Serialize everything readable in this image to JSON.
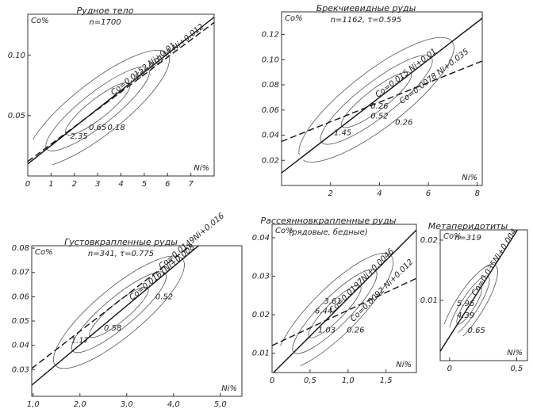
{
  "chart_data": [
    {
      "type": "contour",
      "title": "Рудное тело",
      "subtitle": "n=1700",
      "y_label": "Co%",
      "x_label": "Ni%",
      "xlim": [
        0,
        8
      ],
      "ylim": [
        0,
        0.134
      ],
      "xticks": [
        0,
        1,
        2,
        3,
        4,
        5,
        6,
        7
      ],
      "yticks": [
        0.05,
        {
          "value": 0.1,
          "label": "0.10"
        }
      ],
      "lines": [
        {
          "label": "Co=0.0152 Ni+0.01",
          "slope": 0.0152,
          "intercept": 0.01,
          "dashed": false
        },
        {
          "label": "Co=0.0144 Ni+0.012",
          "slope": 0.0144,
          "intercept": 0.012,
          "dashed": true
        }
      ],
      "annotations": [
        {
          "text": "2.35",
          "x": 2.2,
          "y": 0.033
        },
        {
          "text": "0.65",
          "x": 3.0,
          "y": 0.04
        },
        {
          "text": "0.18",
          "x": 3.8,
          "y": 0.04
        }
      ]
    },
    {
      "type": "contour",
      "title": "Брекчиевидные руды",
      "subtitle": "n=1162, τ=0.595",
      "y_label": "Co%",
      "x_label": "Ni%",
      "xlim": [
        0,
        8.2
      ],
      "ylim": [
        0,
        0.138
      ],
      "xticks": [
        2,
        4,
        6,
        8
      ],
      "yticks": [
        0.02,
        0.04,
        0.06,
        0.08,
        {
          "value": 0.1,
          "label": "0.10"
        },
        0.12
      ],
      "lines": [
        {
          "label": "Co=0.015 Ni+0.01",
          "slope": 0.015,
          "intercept": 0.01,
          "dashed": false
        },
        {
          "label": "Co=0.0078 Ni+0.035",
          "slope": 0.0078,
          "intercept": 0.035,
          "dashed": true
        }
      ],
      "annotations": [
        {
          "text": "0.26",
          "x": 4.0,
          "y": 0.063
        },
        {
          "text": "0.52",
          "x": 4.0,
          "y": 0.055
        },
        {
          "text": "0.26",
          "x": 5.0,
          "y": 0.05
        },
        {
          "text": "1.45",
          "x": 2.5,
          "y": 0.042
        }
      ]
    },
    {
      "type": "contour",
      "title": "Густовкрапленные руды",
      "subtitle": "n=341, τ=0.775",
      "y_label": "Co%",
      "x_label": "Ni%",
      "xlim": [
        0.97,
        5.46
      ],
      "ylim": [
        0.019,
        0.081
      ],
      "xticks": [
        {
          "value": 1,
          "label": "1,0"
        },
        {
          "value": 2,
          "label": "2,0"
        },
        {
          "value": 3,
          "label": "3,0"
        },
        {
          "value": 4,
          "label": "4,0"
        },
        {
          "value": 5,
          "label": "5,0"
        }
      ],
      "yticks": [
        0.03,
        0.04,
        0.05,
        0.06,
        0.07,
        0.08
      ],
      "lines": [
        {
          "label": "Co=0.0161Ni+0.008",
          "slope": 0.0161,
          "intercept": 0.008,
          "dashed": false
        },
        {
          "label": "Co=0.0149Ni+0.016",
          "slope": 0.0149,
          "intercept": 0.016,
          "dashed": true
        }
      ],
      "annotations": [
        {
          "text": "0.52",
          "x": 3.8,
          "y": 0.06
        },
        {
          "text": "0.58",
          "x": 2.7,
          "y": 0.047
        },
        {
          "text": "1.17",
          "x": 2.0,
          "y": 0.042
        }
      ]
    },
    {
      "type": "contour",
      "title": "Рассеянновкрапленные руды",
      "subtitle": "(рядовые, бедные)",
      "y_label": "Co%",
      "x_label": "Ni%",
      "xlim": [
        0,
        1.9
      ],
      "ylim": [
        0.005,
        0.0435
      ],
      "xticks": [
        0,
        {
          "value": 0.5,
          "label": "0,5"
        },
        {
          "value": 1,
          "label": "1,0"
        },
        {
          "value": 1.5,
          "label": "1,5"
        }
      ],
      "yticks": [
        0.01,
        0.02,
        0.03,
        0.04
      ],
      "lines": [
        {
          "label": "Co=0.0197Ni+0.0046",
          "slope": 0.0197,
          "intercept": 0.0046,
          "dashed": false
        },
        {
          "label": "Co=0.0092 Ni+0.012",
          "slope": 0.0092,
          "intercept": 0.012,
          "dashed": true
        }
      ],
      "annotations": [
        {
          "text": "3.61",
          "x": 0.8,
          "y": 0.0235
        },
        {
          "text": "6.44",
          "x": 0.68,
          "y": 0.021
        },
        {
          "text": "1.03",
          "x": 0.72,
          "y": 0.016
        },
        {
          "text": "0.26",
          "x": 1.1,
          "y": 0.016
        }
      ]
    },
    {
      "type": "contour",
      "title": "Метаперидотиты",
      "subtitle": "n=319",
      "y_label": "Co%",
      "x_label": "Ni%",
      "xlim": [
        -0.07,
        0.58
      ],
      "ylim": [
        0,
        0.0217
      ],
      "xticks": [
        0,
        {
          "value": 0.5,
          "label": "0,5"
        }
      ],
      "yticks": [
        0.01,
        0.02
      ],
      "lines": [
        {
          "label": "Co=0.035Ni+0.004",
          "slope": 0.035,
          "intercept": 0.004,
          "dashed": false
        }
      ],
      "annotations": [
        {
          "text": "5.96",
          "x": 0.12,
          "y": 0.0095
        },
        {
          "text": "4.39",
          "x": 0.12,
          "y": 0.0075
        },
        {
          "text": "0.65",
          "x": 0.2,
          "y": 0.005
        }
      ]
    }
  ]
}
